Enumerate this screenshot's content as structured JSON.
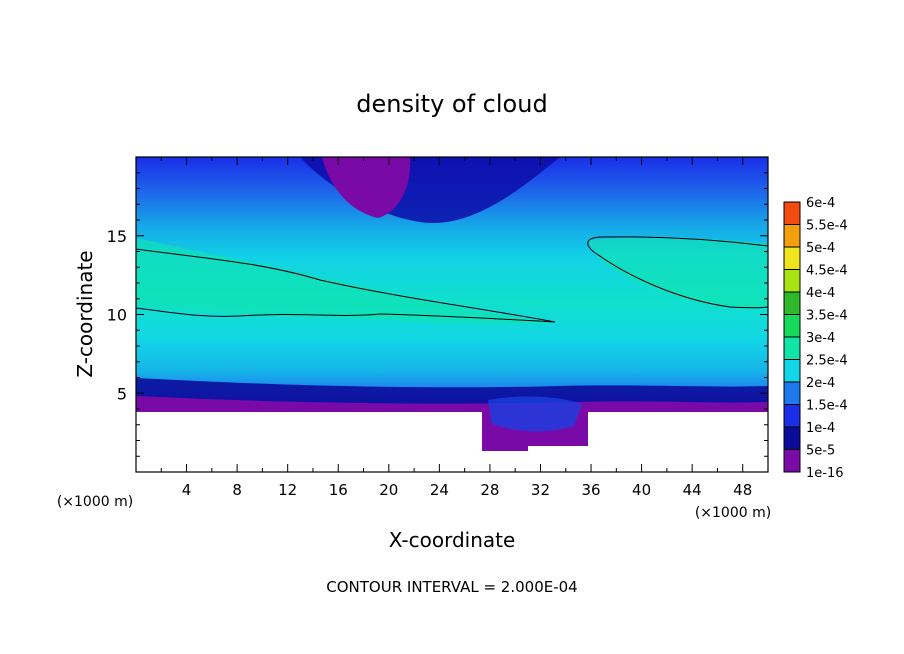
{
  "chart_data": {
    "type": "heatmap",
    "title": "density of cloud",
    "xlabel": "X-coordinate",
    "ylabel": "Z-coordinate",
    "x_unit": "(×1000 m)",
    "z_unit": "(×1000 m)",
    "xlim": [
      0,
      50
    ],
    "ylim": [
      0,
      20
    ],
    "x_ticks": [
      "4",
      "8",
      "12",
      "16",
      "20",
      "24",
      "28",
      "32",
      "36",
      "40",
      "44",
      "48"
    ],
    "y_ticks": [
      "5",
      "10",
      "15"
    ],
    "colorbar": {
      "labels": [
        "1e-16",
        "5e-5",
        "1e-4",
        "1.5e-4",
        "2e-4",
        "2.5e-4",
        "3e-4",
        "3.5e-4",
        "4e-4",
        "4.5e-4",
        "5e-4",
        "5.5e-4",
        "6e-4"
      ],
      "colors": [
        "#7a0aa8",
        "#0c0c9a",
        "#1a2ee8",
        "#1e78ee",
        "#12d6e6",
        "#10e4a8",
        "#18d85a",
        "#2cb82a",
        "#a8e414",
        "#f0e41c",
        "#f2a00e",
        "#f44c10",
        "#f47c7c"
      ]
    },
    "contour_interval_label": "CONTOUR INTERVAL = 2.000E-04",
    "contour_level": 0.0002,
    "profile_columns": [
      {
        "x": 0,
        "top_ground": 4.0
      },
      {
        "x": 26,
        "top_ground": 4.0
      },
      {
        "x": 27,
        "top_ground": 1.5
      },
      {
        "x": 33,
        "top_ground": 2.0
      },
      {
        "x": 36,
        "top_ground": 4.0
      },
      {
        "x": 50,
        "top_ground": 4.0
      }
    ]
  }
}
